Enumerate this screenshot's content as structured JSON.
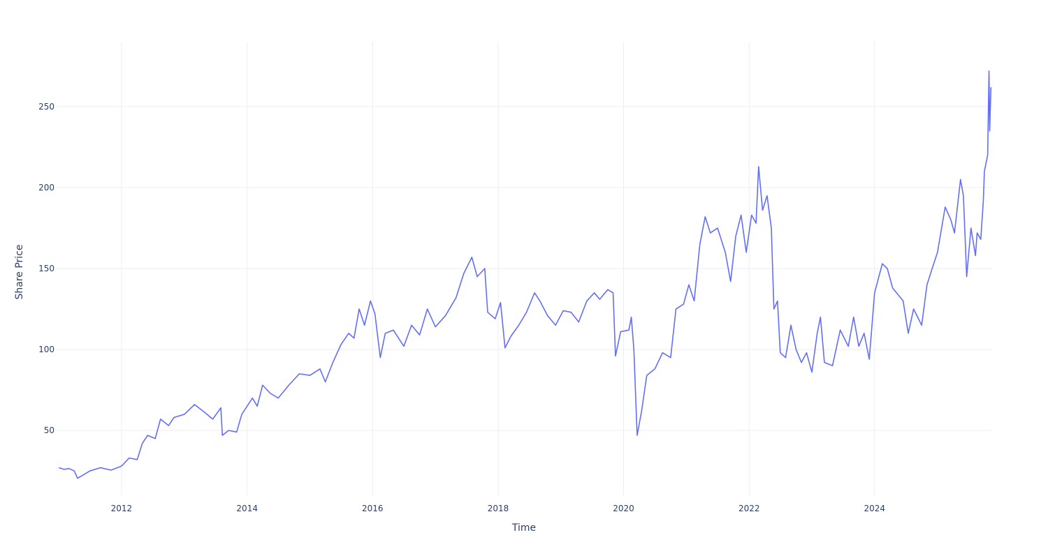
{
  "chart_data": {
    "type": "line",
    "title": "",
    "xlabel": "Time",
    "ylabel": "Share Price",
    "xlim": [
      "2010-12-15",
      "2025-11-15"
    ],
    "ylim": [
      10,
      290
    ],
    "x_ticks": [
      "2012",
      "2014",
      "2016",
      "2018",
      "2020",
      "2022",
      "2024"
    ],
    "y_ticks": [
      50,
      100,
      150,
      200,
      250
    ],
    "grid": true,
    "legend": "none",
    "series": [
      {
        "color": "#636efa",
        "points": [
          [
            "2011-01-01",
            27
          ],
          [
            "2011-02-01",
            26
          ],
          [
            "2011-03-01",
            26.5
          ],
          [
            "2011-04-01",
            25
          ],
          [
            "2011-04-20",
            20.5
          ],
          [
            "2011-05-15",
            22
          ],
          [
            "2011-07-01",
            25
          ],
          [
            "2011-09-01",
            27
          ],
          [
            "2011-11-01",
            25.5
          ],
          [
            "2012-01-01",
            28
          ],
          [
            "2012-02-15",
            33
          ],
          [
            "2012-04-01",
            32
          ],
          [
            "2012-05-01",
            42
          ],
          [
            "2012-06-01",
            47
          ],
          [
            "2012-07-15",
            45
          ],
          [
            "2012-08-15",
            57
          ],
          [
            "2012-10-01",
            53
          ],
          [
            "2012-11-01",
            58
          ],
          [
            "2013-01-01",
            60
          ],
          [
            "2013-03-01",
            66
          ],
          [
            "2013-05-01",
            61
          ],
          [
            "2013-06-15",
            57
          ],
          [
            "2013-08-01",
            64
          ],
          [
            "2013-08-10",
            47
          ],
          [
            "2013-09-15",
            50
          ],
          [
            "2013-11-01",
            49
          ],
          [
            "2013-12-01",
            60
          ],
          [
            "2014-01-01",
            65
          ],
          [
            "2014-02-01",
            70
          ],
          [
            "2014-03-01",
            65
          ],
          [
            "2014-04-01",
            78
          ],
          [
            "2014-05-15",
            73
          ],
          [
            "2014-07-01",
            70
          ],
          [
            "2014-09-01",
            78
          ],
          [
            "2014-11-01",
            85
          ],
          [
            "2015-01-01",
            84
          ],
          [
            "2015-03-01",
            88
          ],
          [
            "2015-04-01",
            80
          ],
          [
            "2015-05-15",
            92
          ],
          [
            "2015-07-01",
            103
          ],
          [
            "2015-08-15",
            110
          ],
          [
            "2015-09-15",
            107
          ],
          [
            "2015-10-15",
            125
          ],
          [
            "2015-11-15",
            115
          ],
          [
            "2015-12-20",
            130
          ],
          [
            "2016-01-15",
            122
          ],
          [
            "2016-02-15",
            95
          ],
          [
            "2016-03-15",
            110
          ],
          [
            "2016-05-01",
            112
          ],
          [
            "2016-07-01",
            102
          ],
          [
            "2016-08-15",
            115
          ],
          [
            "2016-10-01",
            109
          ],
          [
            "2016-11-15",
            125
          ],
          [
            "2017-01-01",
            114
          ],
          [
            "2017-03-01",
            121
          ],
          [
            "2017-05-01",
            132
          ],
          [
            "2017-06-15",
            147
          ],
          [
            "2017-08-01",
            157
          ],
          [
            "2017-09-01",
            145
          ],
          [
            "2017-10-15",
            150
          ],
          [
            "2017-11-01",
            123
          ],
          [
            "2017-12-15",
            119
          ],
          [
            "2018-01-15",
            129
          ],
          [
            "2018-02-10",
            101
          ],
          [
            "2018-03-15",
            108
          ],
          [
            "2018-05-01",
            115
          ],
          [
            "2018-06-15",
            123
          ],
          [
            "2018-08-01",
            135
          ],
          [
            "2018-09-01",
            130
          ],
          [
            "2018-10-15",
            121
          ],
          [
            "2018-12-01",
            115
          ],
          [
            "2019-01-15",
            124
          ],
          [
            "2019-03-01",
            123
          ],
          [
            "2019-04-15",
            117
          ],
          [
            "2019-06-01",
            130
          ],
          [
            "2019-07-15",
            135
          ],
          [
            "2019-08-15",
            131
          ],
          [
            "2019-10-01",
            137
          ],
          [
            "2019-11-01",
            135
          ],
          [
            "2019-11-15",
            96
          ],
          [
            "2019-12-15",
            111
          ],
          [
            "2020-02-01",
            112
          ],
          [
            "2020-02-15",
            120
          ],
          [
            "2020-03-01",
            100
          ],
          [
            "2020-03-20",
            47
          ],
          [
            "2020-04-15",
            62
          ],
          [
            "2020-05-15",
            84
          ],
          [
            "2020-07-01",
            88
          ],
          [
            "2020-08-15",
            98
          ],
          [
            "2020-10-01",
            95
          ],
          [
            "2020-11-01",
            125
          ],
          [
            "2020-12-15",
            128
          ],
          [
            "2021-01-15",
            140
          ],
          [
            "2021-02-15",
            130
          ],
          [
            "2021-03-20",
            165
          ],
          [
            "2021-04-20",
            182
          ],
          [
            "2021-05-20",
            172
          ],
          [
            "2021-07-01",
            175
          ],
          [
            "2021-08-15",
            160
          ],
          [
            "2021-09-15",
            142
          ],
          [
            "2021-10-15",
            170
          ],
          [
            "2021-11-15",
            183
          ],
          [
            "2021-12-15",
            160
          ],
          [
            "2022-01-15",
            183
          ],
          [
            "2022-02-10",
            178
          ],
          [
            "2022-02-25",
            213
          ],
          [
            "2022-03-20",
            186
          ],
          [
            "2022-04-15",
            195
          ],
          [
            "2022-05-10",
            175
          ],
          [
            "2022-05-25",
            125
          ],
          [
            "2022-06-15",
            130
          ],
          [
            "2022-07-01",
            98
          ],
          [
            "2022-08-01",
            95
          ],
          [
            "2022-09-01",
            115
          ],
          [
            "2022-10-01",
            100
          ],
          [
            "2022-11-01",
            92
          ],
          [
            "2022-12-01",
            98
          ],
          [
            "2023-01-01",
            86
          ],
          [
            "2023-02-01",
            110
          ],
          [
            "2023-02-20",
            120
          ],
          [
            "2023-03-15",
            92
          ],
          [
            "2023-05-01",
            90
          ],
          [
            "2023-06-15",
            112
          ],
          [
            "2023-08-01",
            102
          ],
          [
            "2023-09-01",
            120
          ],
          [
            "2023-10-01",
            102
          ],
          [
            "2023-11-01",
            110
          ],
          [
            "2023-12-01",
            94
          ],
          [
            "2024-01-01",
            135
          ],
          [
            "2024-02-15",
            153
          ],
          [
            "2024-03-15",
            150
          ],
          [
            "2024-04-15",
            138
          ],
          [
            "2024-06-15",
            130
          ],
          [
            "2024-07-15",
            110
          ],
          [
            "2024-08-15",
            125
          ],
          [
            "2024-10-01",
            115
          ],
          [
            "2024-11-01",
            140
          ],
          [
            "2024-12-01",
            150
          ],
          [
            "2025-01-01",
            160
          ],
          [
            "2025-02-15",
            188
          ],
          [
            "2025-03-20",
            180
          ],
          [
            "2025-04-10",
            172
          ],
          [
            "2025-05-15",
            205
          ],
          [
            "2025-06-01",
            195
          ],
          [
            "2025-06-20",
            145
          ],
          [
            "2025-07-15",
            175
          ],
          [
            "2025-08-10",
            158
          ],
          [
            "2025-08-20",
            172
          ],
          [
            "2025-09-10",
            168
          ],
          [
            "2025-09-25",
            192
          ],
          [
            "2025-10-01",
            210
          ],
          [
            "2025-10-20",
            220
          ],
          [
            "2025-10-28",
            272
          ],
          [
            "2025-11-01",
            235
          ],
          [
            "2025-11-08",
            262
          ]
        ]
      }
    ]
  }
}
